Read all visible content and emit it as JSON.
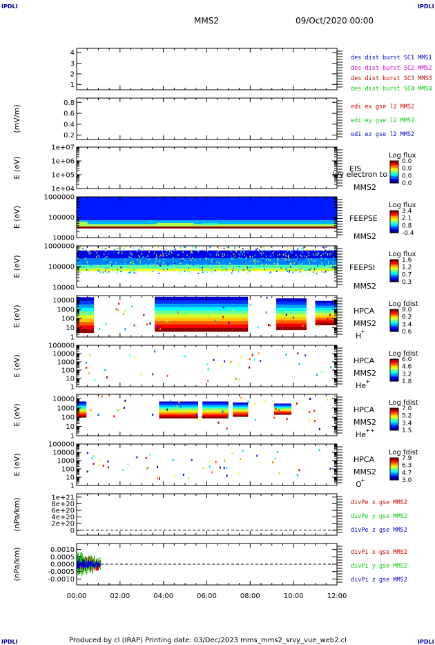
{
  "corner_marks": {
    "top_left": "IPDLI",
    "top_right": "IPDLI",
    "bottom_left": "IPDLI",
    "bottom_right": "IPDLI"
  },
  "header": {
    "title": "MMS2",
    "date": "09/Oct/2020 00:00"
  },
  "footer": {
    "text": "Produced by cl (IRAP)   Printing date: 03/Dec/2023   mms_mms2_srvy_vue_web2.cl"
  },
  "chart_data": [
    {
      "type": "line",
      "ylim": [
        0.5,
        4.4
      ],
      "ylabel": "",
      "yticks": [
        "1",
        "2",
        "3",
        "4"
      ],
      "legend": [
        {
          "name": "des dist burst SC1 MMS1",
          "color": "#0000cc"
        },
        {
          "name": "des dist burst SC2 MMS2",
          "color": "#cc00cc"
        },
        {
          "name": "des dist burst SC3 MMS3",
          "color": "#cc0000"
        },
        {
          "name": "des dist burst SC4 MMS4",
          "color": "#00cc00"
        }
      ],
      "series": []
    },
    {
      "type": "line",
      "ylim": [
        0.12,
        0.88
      ],
      "ylabel": "(mV/m)",
      "yticks": [
        "0.2",
        "0.4",
        "0.6",
        "0.8"
      ],
      "legend": [
        {
          "name": "edi ex gse l2 MMS2",
          "color": "#cc0000"
        },
        {
          "name": "edi ey gse l2 MMS2",
          "color": "#00cc00"
        },
        {
          "name": "edi ez gse l2 MMS2",
          "color": "#0000cc"
        }
      ],
      "series": []
    },
    {
      "type": "heatmap",
      "ylabel": "E (eV)",
      "yscale": "log",
      "ylim": [
        10000.0,
        10000000.0
      ],
      "yticks": [
        "1e+04",
        "1e+05",
        "1e+06",
        "1e+07"
      ],
      "instrument": "EIS",
      "sc": "MMS2",
      "overlay_text": "lvy electron to",
      "colorbar": {
        "label": "Log flux",
        "ticks": [
          "0.0",
          "0.0",
          "0.0",
          "0.0"
        ]
      },
      "blocks": []
    },
    {
      "type": "heatmap",
      "ylabel": "E (eV)",
      "yscale": "log",
      "ylim": [
        10000.0,
        1000000.0
      ],
      "yticks": [
        "10000",
        "100000",
        "1000000"
      ],
      "instrument": "FEEPSE",
      "sc": "MMS2",
      "colorbar": {
        "label": "Log flux",
        "ticks": [
          "3.4",
          "2.1",
          "0.8",
          "-0.4"
        ]
      },
      "bands": [
        {
          "t0": 0,
          "t1": 12,
          "e_lo": 70000,
          "e_hi": 1000000,
          "level": 0.15
        },
        {
          "t0": 0,
          "t1": 12,
          "e_lo": 45000,
          "e_hi": 70000,
          "level": 0.3
        },
        {
          "t0": 0,
          "t1": 12,
          "e_lo": 35000,
          "e_hi": 45000,
          "level": 0.55
        },
        {
          "t0": 0,
          "t1": 12,
          "e_lo": 28000,
          "e_hi": 35000,
          "level": 1.0
        }
      ],
      "blocks": [
        {
          "t0": 0,
          "t1": 0.5,
          "e_lo": 42000,
          "e_hi": 60000,
          "level": 0.55
        },
        {
          "t0": 3.7,
          "t1": 5.4,
          "e_lo": 38000,
          "e_hi": 52000,
          "level": 0.55
        },
        {
          "t0": 5.8,
          "t1": 6.5,
          "e_lo": 40000,
          "e_hi": 50000,
          "level": 0.45
        }
      ]
    },
    {
      "type": "heatmap",
      "ylabel": "E (eV)",
      "yscale": "log",
      "ylim": [
        10000.0,
        1000000.0
      ],
      "yticks": [
        "10000",
        "100000",
        "1000000"
      ],
      "instrument": "FEEPSI",
      "sc": "MMS2",
      "colorbar": {
        "label": "Log flux",
        "ticks": [
          "1.6",
          "1.2",
          "0.7",
          "0.3"
        ]
      },
      "bands": [
        {
          "t0": 0,
          "t1": 12,
          "e_lo": 60000,
          "e_hi": 80000,
          "level": 0.6
        },
        {
          "t0": 0,
          "t1": 12,
          "e_lo": 80000,
          "e_hi": 120000,
          "level": 0.45
        },
        {
          "t0": 0,
          "t1": 12,
          "e_lo": 120000,
          "e_hi": 250000,
          "level": 0.25
        },
        {
          "t0": 0,
          "t1": 12,
          "e_lo": 250000,
          "e_hi": 600000,
          "level": 0.1
        }
      ],
      "blocks": []
    },
    {
      "type": "heatmap",
      "ylabel": "E (eV)",
      "yscale": "log",
      "ylim": [
        1,
        30000
      ],
      "yticks": [
        "1",
        "10",
        "100",
        "1000",
        "10000"
      ],
      "instrument": "HPCA",
      "sc": "MMS2",
      "species": "H",
      "species_sup": "+",
      "colorbar": {
        "label": "Log fdist",
        "ticks": [
          "9.0",
          "6.2",
          "3.4",
          "0.6"
        ]
      },
      "blocks": [
        {
          "t0": 0,
          "t1": 0.8,
          "e_lo": 3,
          "e_hi": 20000,
          "level": "profile"
        },
        {
          "t0": 3.6,
          "t1": 7.9,
          "e_lo": 4,
          "e_hi": 22000,
          "level": "profile"
        },
        {
          "t0": 9.2,
          "t1": 10.6,
          "e_lo": 6,
          "e_hi": 15000,
          "level": "profile"
        },
        {
          "t0": 11.0,
          "t1": 12,
          "e_lo": 20,
          "e_hi": 8000,
          "level": "profile"
        }
      ]
    },
    {
      "type": "heatmap",
      "ylabel": "E (eV)",
      "yscale": "log",
      "ylim": [
        1,
        100000
      ],
      "yticks": [
        "1",
        "10",
        "100",
        "1000",
        "10000",
        "100000"
      ],
      "instrument": "HPCA",
      "sc": "MMS2",
      "species": "He",
      "species_sup": "+",
      "colorbar": {
        "label": "Log fdist",
        "ticks": [
          "6.0",
          "4.6",
          "3.2",
          "1.8"
        ]
      },
      "blocks": []
    },
    {
      "type": "heatmap",
      "ylabel": "E (eV)",
      "yscale": "log",
      "ylim": [
        1,
        30000
      ],
      "yticks": [
        "1",
        "10",
        "100",
        "1000",
        "10000"
      ],
      "instrument": "HPCA",
      "sc": "MMS2",
      "species": "He",
      "species_sup": "++",
      "colorbar": {
        "label": "Log fdist",
        "ticks": [
          "7.0",
          "5.2",
          "3.4",
          "1.5"
        ]
      },
      "blocks": [
        {
          "t0": 0,
          "t1": 0.45,
          "e_lo": 100,
          "e_hi": 5000,
          "level": "profile"
        },
        {
          "t0": 3.8,
          "t1": 5.6,
          "e_lo": 80,
          "e_hi": 5000,
          "level": "profile"
        },
        {
          "t0": 5.8,
          "t1": 7.0,
          "e_lo": 80,
          "e_hi": 5000,
          "level": "profile"
        },
        {
          "t0": 7.2,
          "t1": 7.9,
          "e_lo": 120,
          "e_hi": 4000,
          "level": "profile"
        },
        {
          "t0": 9.1,
          "t1": 9.9,
          "e_lo": 200,
          "e_hi": 3000,
          "level": "profile"
        }
      ]
    },
    {
      "type": "heatmap",
      "ylabel": "E (eV)",
      "yscale": "log",
      "ylim": [
        1,
        100000
      ],
      "yticks": [
        "1",
        "10",
        "100",
        "1000",
        "10000",
        "100000"
      ],
      "instrument": "HPCA",
      "sc": "MMS2",
      "species": "O",
      "species_sup": "+",
      "colorbar": {
        "label": "Log fdist",
        "ticks": [
          "7.9",
          "6.3",
          "4.7",
          "3.0"
        ]
      },
      "blocks": []
    },
    {
      "type": "line",
      "ylabel": "(nPa/km)",
      "ylim": [
        -1.5e+20,
        1.1e+21
      ],
      "yticks": [
        "0",
        "2e+20",
        "4e+20",
        "6e+20",
        "8e+20",
        "1e+21"
      ],
      "zero_line": true,
      "legend": [
        {
          "name": "divPe x gse MMS2",
          "color": "#cc0000"
        },
        {
          "name": "divPe y gse MMS2",
          "color": "#00cc00"
        },
        {
          "name": "divPe z gse MMS2",
          "color": "#0000cc"
        }
      ],
      "series": []
    },
    {
      "type": "line",
      "ylabel": "(nPa/km)",
      "ylim": [
        -0.0014,
        0.0014
      ],
      "yticks": [
        "-0.0010",
        "-0.0005",
        "0.0000",
        "0.0005",
        "0.0010"
      ],
      "zero_line": true,
      "legend": [
        {
          "name": "divPi x gse MMS2",
          "color": "#cc0000"
        },
        {
          "name": "divPi y gse MMS2",
          "color": "#00cc00"
        },
        {
          "name": "divPi z gse MMS2",
          "color": "#0000cc"
        }
      ],
      "series": [
        {
          "name": "divPi x gse MMS2",
          "t0": 0,
          "t1": 1.1,
          "amp": 0.0007
        },
        {
          "name": "divPi y gse MMS2",
          "t0": 0,
          "t1": 1.1,
          "amp": 0.0009
        },
        {
          "name": "divPi z gse MMS2",
          "t0": 0,
          "t1": 1.1,
          "amp": 0.0004
        }
      ]
    }
  ],
  "time_axis": {
    "labels": [
      "00:00",
      "02:00",
      "04:00",
      "06:00",
      "08:00",
      "10:00",
      "12:00"
    ],
    "range_hours": [
      0,
      12
    ]
  }
}
